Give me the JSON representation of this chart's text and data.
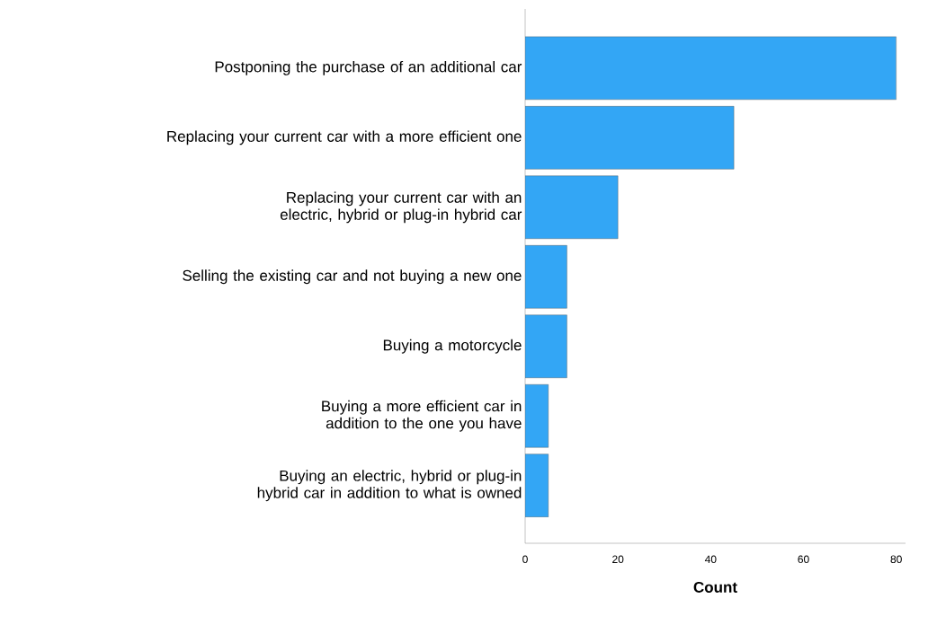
{
  "chart_data": {
    "type": "bar",
    "orientation": "horizontal",
    "xlabel": "Count",
    "categories": [
      "Postponing the purchase of an additional car",
      "Replacing your current car with a more efficient one",
      "Replacing your current car with an electric, hybrid or plug-in hybrid car",
      "Selling the existing car and not buying a new one",
      "Buying a motorcycle",
      "Buying a more efficient car in addition to the one you have",
      "Buying an electric, hybrid or plug-in hybrid car in addition to what is owned"
    ],
    "values": [
      80,
      45,
      20,
      9,
      9,
      5,
      5
    ],
    "color": "#33a6f5",
    "xlim": [
      0,
      82
    ],
    "xticks": [
      0,
      20,
      40,
      60,
      80
    ]
  }
}
